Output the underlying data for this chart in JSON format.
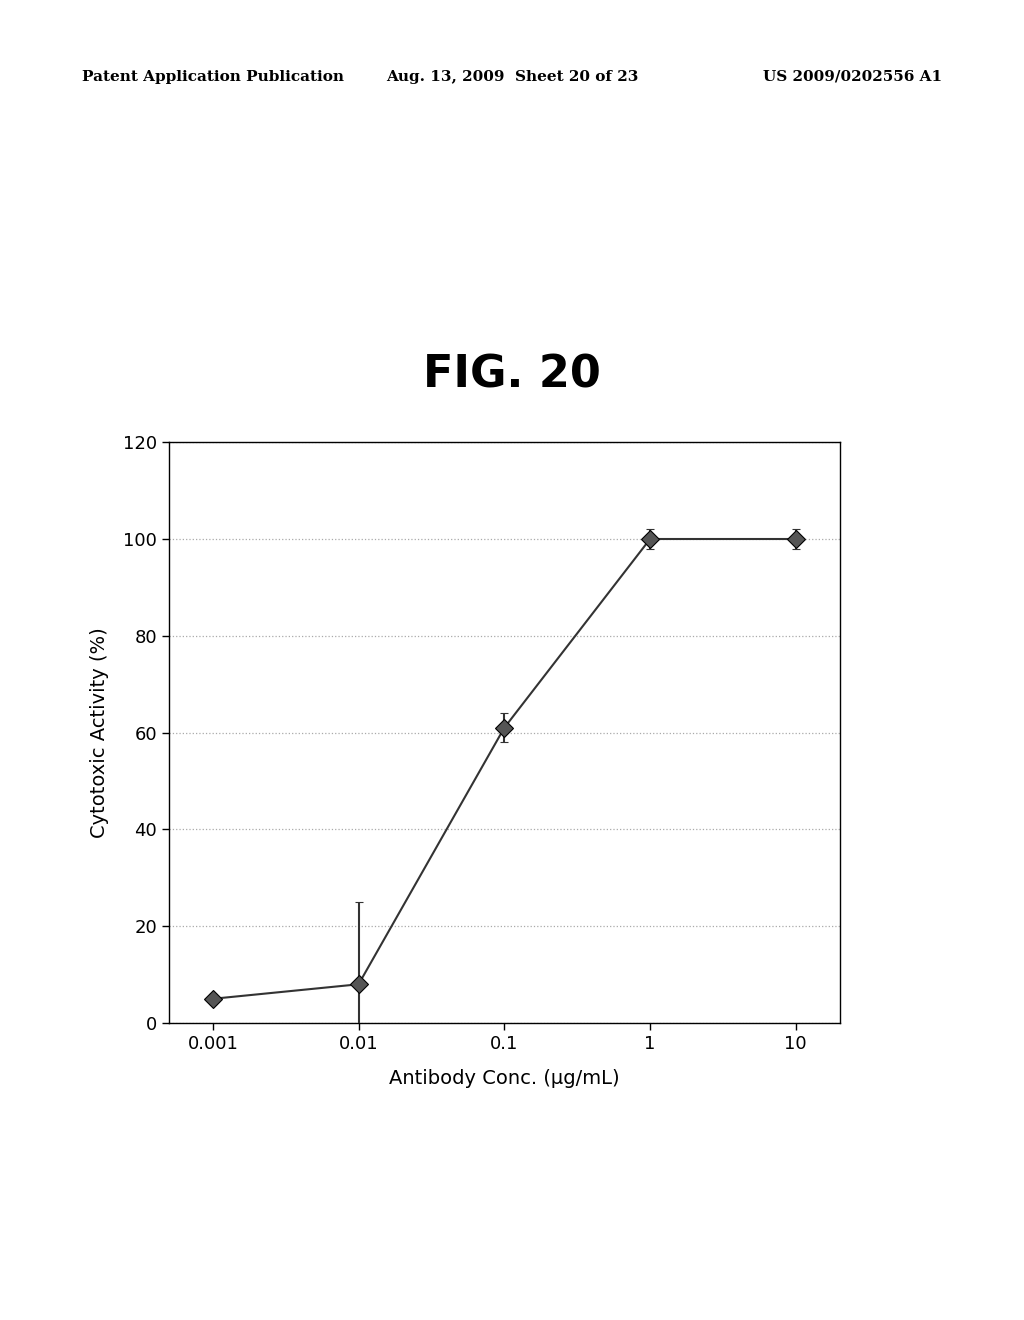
{
  "title": "FIG. 20",
  "xlabel": "Antibody Conc. (μg/mL)",
  "ylabel": "Cytotoxic Activity (%)",
  "x_values": [
    0.001,
    0.01,
    0.1,
    1,
    10
  ],
  "y_values": [
    5,
    8,
    61,
    100,
    100
  ],
  "y_errors": [
    1,
    17,
    3,
    2,
    2
  ],
  "ylim": [
    0,
    120
  ],
  "yticks": [
    0,
    20,
    40,
    60,
    80,
    100,
    120
  ],
  "xtick_labels": [
    "0.001",
    "0.01",
    "0.1",
    "1",
    "10"
  ],
  "line_color": "#333333",
  "marker_color": "#555555",
  "grid_color": "#aaaaaa",
  "background_color": "#ffffff",
  "header_left": "Patent Application Publication",
  "header_mid": "Aug. 13, 2009  Sheet 20 of 23",
  "header_right": "US 2009/0202556 A1",
  "title_fontsize": 32,
  "axis_label_fontsize": 14,
  "tick_fontsize": 13,
  "header_fontsize": 11
}
